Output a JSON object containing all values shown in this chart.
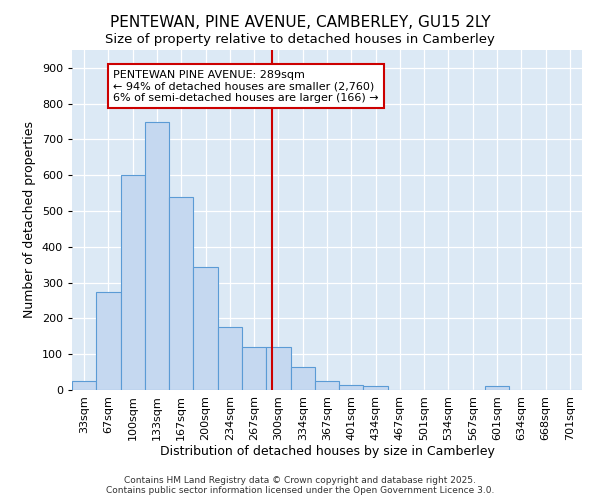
{
  "title": "PENTEWAN, PINE AVENUE, CAMBERLEY, GU15 2LY",
  "subtitle": "Size of property relative to detached houses in Camberley",
  "xlabel": "Distribution of detached houses by size in Camberley",
  "ylabel": "Number of detached properties",
  "bar_labels": [
    "33sqm",
    "67sqm",
    "100sqm",
    "133sqm",
    "167sqm",
    "200sqm",
    "234sqm",
    "267sqm",
    "300sqm",
    "334sqm",
    "367sqm",
    "401sqm",
    "434sqm",
    "467sqm",
    "501sqm",
    "534sqm",
    "567sqm",
    "601sqm",
    "634sqm",
    "668sqm",
    "701sqm"
  ],
  "bar_values": [
    25,
    275,
    600,
    750,
    540,
    345,
    175,
    120,
    120,
    65,
    25,
    15,
    10,
    0,
    0,
    0,
    0,
    10,
    0,
    0,
    0
  ],
  "bar_color": "#c5d8f0",
  "bar_edge_color": "#5b9bd5",
  "vline_color": "#cc0000",
  "vline_x_index": 7.72,
  "annotation_text": "PENTEWAN PINE AVENUE: 289sqm\n← 94% of detached houses are smaller (2,760)\n6% of semi-detached houses are larger (166) →",
  "annotation_box_color": "#ffffff",
  "annotation_box_edge": "#cc0000",
  "ylim": [
    0,
    950
  ],
  "yticks": [
    0,
    100,
    200,
    300,
    400,
    500,
    600,
    700,
    800,
    900
  ],
  "fig_bg_color": "#ffffff",
  "plot_bg_color": "#dce9f5",
  "grid_color": "#ffffff",
  "footer1": "Contains HM Land Registry data © Crown copyright and database right 2025.",
  "footer2": "Contains public sector information licensed under the Open Government Licence 3.0.",
  "title_fontsize": 11,
  "subtitle_fontsize": 9.5,
  "tick_fontsize": 8,
  "ylabel_fontsize": 9,
  "xlabel_fontsize": 9,
  "annot_fontsize": 8,
  "footer_fontsize": 6.5
}
